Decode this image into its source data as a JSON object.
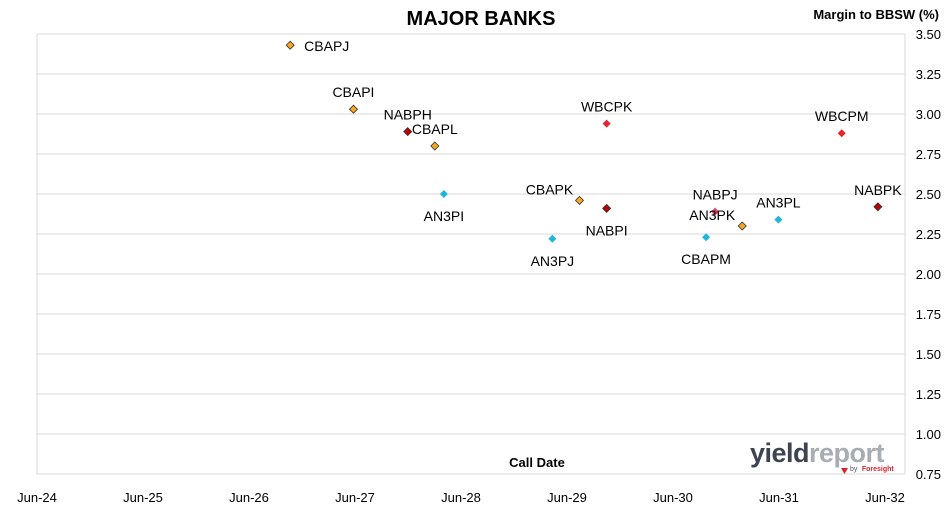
{
  "chart_data": {
    "type": "scatter",
    "title": "MAJOR BANKS",
    "ylabel": "Margin to BBSW (%)",
    "xlabel": "Call Date",
    "x_axis": {
      "type": "date",
      "range": [
        "2024-06",
        "2032-06"
      ],
      "tick_labels": [
        "Jun-24",
        "Jun-25",
        "Jun-26",
        "Jun-27",
        "Jun-28",
        "Jun-29",
        "Jun-30",
        "Jun-31",
        "Jun-32"
      ]
    },
    "y_axis": {
      "range": [
        0.75,
        3.5
      ],
      "position": "right",
      "tick_labels": [
        "0.75",
        "1.00",
        "1.25",
        "1.50",
        "1.75",
        "2.00",
        "2.25",
        "2.50",
        "2.75",
        "3.00",
        "3.25",
        "3.50"
      ]
    },
    "grid": "horizontal",
    "points": [
      {
        "label": "CBAPJ",
        "x": "2026-10",
        "y": 3.43,
        "color": "#f5a623",
        "label_pos": "right"
      },
      {
        "label": "CBAPI",
        "x": "2027-05",
        "y": 3.03,
        "color": "#f5a623",
        "label_pos": "above"
      },
      {
        "label": "NABPH",
        "x": "2027-11",
        "y": 2.89,
        "color": "#c00000",
        "label_pos": "above"
      },
      {
        "label": "CBAPL",
        "x": "2028-02",
        "y": 2.8,
        "color": "#f5a623",
        "label_pos": "above"
      },
      {
        "label": "AN3PI",
        "x": "2028-03",
        "y": 2.5,
        "color": "#1fb6d8",
        "label_pos": "below"
      },
      {
        "label": "WBCPK",
        "x": "2029-09",
        "y": 2.94,
        "color": "#e8232a",
        "label_pos": "above"
      },
      {
        "label": "CBAPK",
        "x": "2029-06",
        "y": 2.46,
        "color": "#f5a623",
        "label_pos": "above-left"
      },
      {
        "label": "NABPI",
        "x": "2029-09",
        "y": 2.41,
        "color": "#c00000",
        "label_pos": "below"
      },
      {
        "label": "AN3PJ",
        "x": "2029-03",
        "y": 2.22,
        "color": "#1fb6d8",
        "label_pos": "below"
      },
      {
        "label": "AN3PK",
        "x": "2030-12",
        "y": 2.3,
        "color": "#f5a623",
        "label_pos": "above-left"
      },
      {
        "label": "CBAPM",
        "x": "2030-08",
        "y": 2.23,
        "color": "#1fb6d8",
        "label_pos": "below"
      },
      {
        "label": "NABPJ",
        "x": "2030-09",
        "y": 2.39,
        "color": "#e0446a",
        "label_pos": "above"
      },
      {
        "label": "AN3PL",
        "x": "2031-04",
        "y": 2.34,
        "color": "#1fb6d8",
        "label_pos": "above"
      },
      {
        "label": "WBCPM",
        "x": "2031-11",
        "y": 2.88,
        "color": "#e8232a",
        "label_pos": "above"
      },
      {
        "label": "NABPK",
        "x": "2032-03",
        "y": 2.42,
        "color": "#c00000",
        "label_pos": "above"
      }
    ]
  },
  "logo": {
    "main": "yield",
    "light": "report",
    "by": "by",
    "brand": "Foresight",
    "color_dark": "#3d4450",
    "color_light": "#a8adb4",
    "color_accent": "#d9242b"
  }
}
